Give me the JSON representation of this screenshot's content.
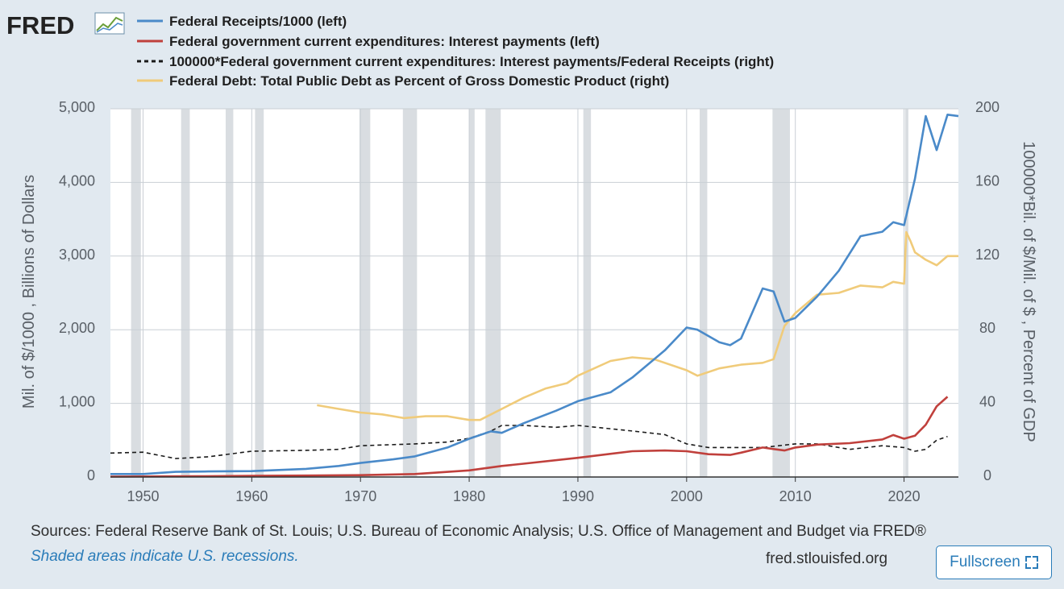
{
  "brand": {
    "name": "FRED",
    "logo_icon": "fred-graph-icon"
  },
  "footer": {
    "sources": "Sources: Federal Reserve Bank of St. Louis; U.S. Bureau of Economic Analysis; U.S. Office of Management and Budget via FRED®",
    "recession_note": "Shaded areas indicate U.S. recessions.",
    "site": "fred.stlouisfed.org",
    "fullscreen_label": "Fullscreen",
    "fullscreen_icon": "expand-icon"
  },
  "colors": {
    "background": "#e1e9f0",
    "plot_background": "#ffffff",
    "recession_shade": "#d9dde1",
    "link_blue": "#2a7cb9"
  },
  "chart_data": {
    "type": "line",
    "xlim": [
      1947,
      2025
    ],
    "x_ticks": [
      "1950",
      "1960",
      "1970",
      "1980",
      "1990",
      "2000",
      "2010",
      "2020"
    ],
    "x_tick_values": [
      1950,
      1960,
      1970,
      1980,
      1990,
      2000,
      2010,
      2020
    ],
    "y_left": {
      "label": "Mil. of $/1000 , Billions of Dollars",
      "lim": [
        0,
        5000
      ],
      "ticks": [
        "0",
        "1,000",
        "2,000",
        "3,000",
        "4,000",
        "5,000"
      ],
      "tick_values": [
        0,
        1000,
        2000,
        3000,
        4000,
        5000
      ]
    },
    "y_right": {
      "label": "100000*Bil. of $/Mil. of $ , Percent of GDP",
      "lim": [
        0,
        200
      ],
      "ticks": [
        "0",
        "40",
        "80",
        "120",
        "160",
        "200"
      ],
      "tick_values": [
        0,
        40,
        80,
        120,
        160,
        200
      ]
    },
    "grid": true,
    "legend_position": "top",
    "recessions": [
      [
        1948.9,
        1949.8
      ],
      [
        1953.5,
        1954.3
      ],
      [
        1957.6,
        1958.3
      ],
      [
        1960.3,
        1961.1
      ],
      [
        1969.9,
        1970.9
      ],
      [
        1973.9,
        1975.2
      ],
      [
        1980.0,
        1980.5
      ],
      [
        1981.5,
        1982.9
      ],
      [
        1990.5,
        1991.2
      ],
      [
        2001.2,
        2001.9
      ],
      [
        2007.9,
        2009.5
      ],
      [
        2020.1,
        2020.3
      ]
    ],
    "series": [
      {
        "name": "Federal Receipts/1000 (left)",
        "axis": "left",
        "color": "#4a8ac9",
        "dash": false,
        "x": [
          1947,
          1950,
          1953,
          1956,
          1960,
          1965,
          1968,
          1970,
          1973,
          1975,
          1978,
          1980,
          1982,
          1983,
          1985,
          1988,
          1990,
          1993,
          1995,
          1998,
          2000,
          2001,
          2003,
          2004,
          2005,
          2007,
          2008,
          2009,
          2010,
          2012,
          2014,
          2016,
          2018,
          2019,
          2020,
          2021,
          2022,
          2023,
          2024,
          2025
        ],
        "values": [
          40,
          40,
          70,
          75,
          80,
          110,
          150,
          190,
          240,
          280,
          400,
          520,
          620,
          600,
          730,
          900,
          1030,
          1150,
          1350,
          1720,
          2030,
          2000,
          1830,
          1790,
          1880,
          2560,
          2520,
          2110,
          2160,
          2450,
          2800,
          3270,
          3330,
          3460,
          3420,
          4050,
          4900,
          4440,
          4920,
          4900
        ]
      },
      {
        "name": "Federal government current expenditures: Interest payments (left)",
        "axis": "left",
        "color": "#c0403c",
        "dash": false,
        "x": [
          1947,
          1955,
          1960,
          1965,
          1970,
          1975,
          1980,
          1983,
          1985,
          1990,
          1995,
          1998,
          2000,
          2002,
          2004,
          2005,
          2007,
          2008,
          2009,
          2010,
          2012,
          2015,
          2018,
          2019,
          2020,
          2021,
          2022,
          2023,
          2024
        ],
        "values": [
          5,
          10,
          15,
          20,
          25,
          40,
          90,
          150,
          180,
          260,
          350,
          360,
          350,
          310,
          300,
          330,
          400,
          380,
          360,
          400,
          440,
          460,
          510,
          570,
          520,
          560,
          710,
          960,
          1090
        ]
      },
      {
        "name": "100000*Federal government current expenditures: Interest payments/Federal Receipts (right)",
        "axis": "right",
        "color": "#1a1a1a",
        "dash": true,
        "x": [
          1947,
          1950,
          1953,
          1956,
          1960,
          1965,
          1968,
          1970,
          1975,
          1978,
          1980,
          1982,
          1983,
          1985,
          1988,
          1990,
          1995,
          1998,
          2000,
          2002,
          2005,
          2007,
          2010,
          2012,
          2015,
          2018,
          2020,
          2021,
          2022,
          2023,
          2024
        ],
        "values": [
          13,
          13.5,
          10,
          11,
          14,
          14.5,
          15,
          17,
          18,
          19,
          21,
          25,
          28,
          28,
          27,
          28,
          25,
          23,
          18,
          16,
          16,
          16,
          18,
          18,
          15,
          17,
          16,
          14,
          15,
          20,
          22
        ]
      },
      {
        "name": "Federal Debt: Total Public Debt as Percent of Gross Domestic Product (right)",
        "axis": "right",
        "color": "#f0cb7a",
        "dash": false,
        "x": [
          1966,
          1968,
          1970,
          1972,
          1974,
          1976,
          1978,
          1980,
          1981,
          1983,
          1985,
          1987,
          1989,
          1990,
          1993,
          1995,
          1997,
          2000,
          2001,
          2003,
          2005,
          2007,
          2008,
          2009,
          2010,
          2012,
          2014,
          2016,
          2018,
          2019,
          2020,
          2020.2,
          2020.6,
          2021,
          2022,
          2023,
          2024,
          2025
        ],
        "values": [
          39,
          37,
          35,
          34,
          32,
          33,
          33,
          31,
          31,
          37,
          43,
          48,
          51,
          55,
          63,
          65,
          64,
          58,
          55,
          59,
          61,
          62,
          64,
          82,
          89,
          99,
          100,
          104,
          103,
          106,
          105,
          133,
          128,
          122,
          118,
          115,
          120,
          120
        ]
      }
    ]
  }
}
